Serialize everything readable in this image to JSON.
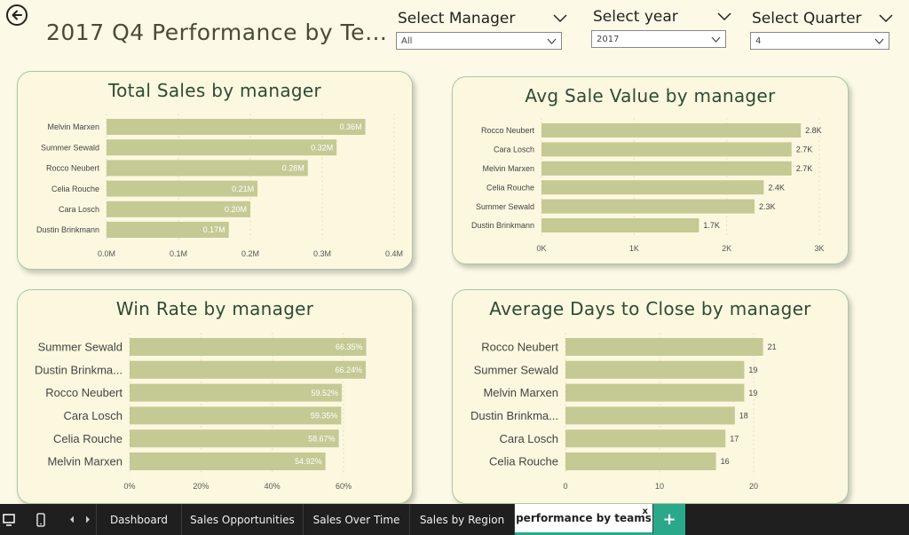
{
  "page_title": "2017 Q4 Performance by Tea...",
  "slicers": [
    {
      "label": "Select Manager",
      "value": "All"
    },
    {
      "label": "Select year",
      "value": "2017"
    },
    {
      "label": "Select Quarter",
      "value": "4"
    }
  ],
  "colors": {
    "bar": "#c5c994",
    "title": "#2f4a35",
    "card_border": "#a9c7a6",
    "active_tab": "#2aa98a"
  },
  "tabs": [
    "Dashboard",
    "Sales Opportunities",
    "Sales Over Time",
    "Sales by Region",
    "performance by teams"
  ],
  "active_tab": "performance by teams",
  "tab_close": "x",
  "tab_add": "+",
  "chart_data": [
    {
      "type": "bar",
      "orientation": "horizontal",
      "title": "Total Sales by manager",
      "categories": [
        "Melvin Marxen",
        "Summer Sewald",
        "Rocco Neubert",
        "Celia Rouche",
        "Cara Losch",
        "Dustin Brinkmann"
      ],
      "values": [
        0.36,
        0.32,
        0.28,
        0.21,
        0.2,
        0.17
      ],
      "data_labels": [
        "0.36M",
        "0.32M",
        "0.28M",
        "0.21M",
        "0.20M",
        "0.17M"
      ],
      "xlim": [
        0,
        0.4
      ],
      "ticks": [
        0,
        0.1,
        0.2,
        0.3,
        0.4
      ],
      "tick_labels": [
        "0.0M",
        "0.1M",
        "0.2M",
        "0.3M",
        "0.4M"
      ]
    },
    {
      "type": "bar",
      "orientation": "horizontal",
      "title": "Avg Sale Value by manager",
      "categories": [
        "Rocco Neubert",
        "Cara Losch",
        "Melvin Marxen",
        "Celia Rouche",
        "Summer Sewald",
        "Dustin Brinkmann"
      ],
      "values": [
        2.8,
        2.7,
        2.7,
        2.4,
        2.3,
        1.7
      ],
      "data_labels": [
        "2.8K",
        "2.7K",
        "2.7K",
        "2.4K",
        "2.3K",
        "1.7K"
      ],
      "xlim": [
        0,
        3
      ],
      "ticks": [
        0,
        1,
        2,
        3
      ],
      "tick_labels": [
        "0K",
        "1K",
        "2K",
        "3K"
      ]
    },
    {
      "type": "bar",
      "orientation": "horizontal",
      "title": "Win Rate by manager",
      "categories": [
        "Summer Sewald",
        "Dustin Brinkma...",
        "Rocco Neubert",
        "Cara Losch",
        "Celia Rouche",
        "Melvin Marxen"
      ],
      "values": [
        66.35,
        66.24,
        59.52,
        59.35,
        58.67,
        54.92
      ],
      "data_labels": [
        "66.35%",
        "66.24%",
        "59.52%",
        "59.35%",
        "58.67%",
        "54.92%"
      ],
      "xlim": [
        0,
        60
      ],
      "ticks": [
        0,
        20,
        40,
        60
      ],
      "tick_labels": [
        "0%",
        "20%",
        "40%",
        "60%"
      ]
    },
    {
      "type": "bar",
      "orientation": "horizontal",
      "title": "Average Days to Close by manager",
      "categories": [
        "Rocco Neubert",
        "Summer Sewald",
        "Melvin Marxen",
        "Dustin Brinkma...",
        "Cara Losch",
        "Celia Rouche"
      ],
      "values": [
        21,
        19,
        19,
        18,
        17,
        16
      ],
      "data_labels": [
        "21",
        "19",
        "19",
        "18",
        "17",
        "16"
      ],
      "xlim": [
        0,
        20
      ],
      "ticks": [
        0,
        10,
        20
      ],
      "tick_labels": [
        "0",
        "10",
        "20"
      ]
    }
  ]
}
